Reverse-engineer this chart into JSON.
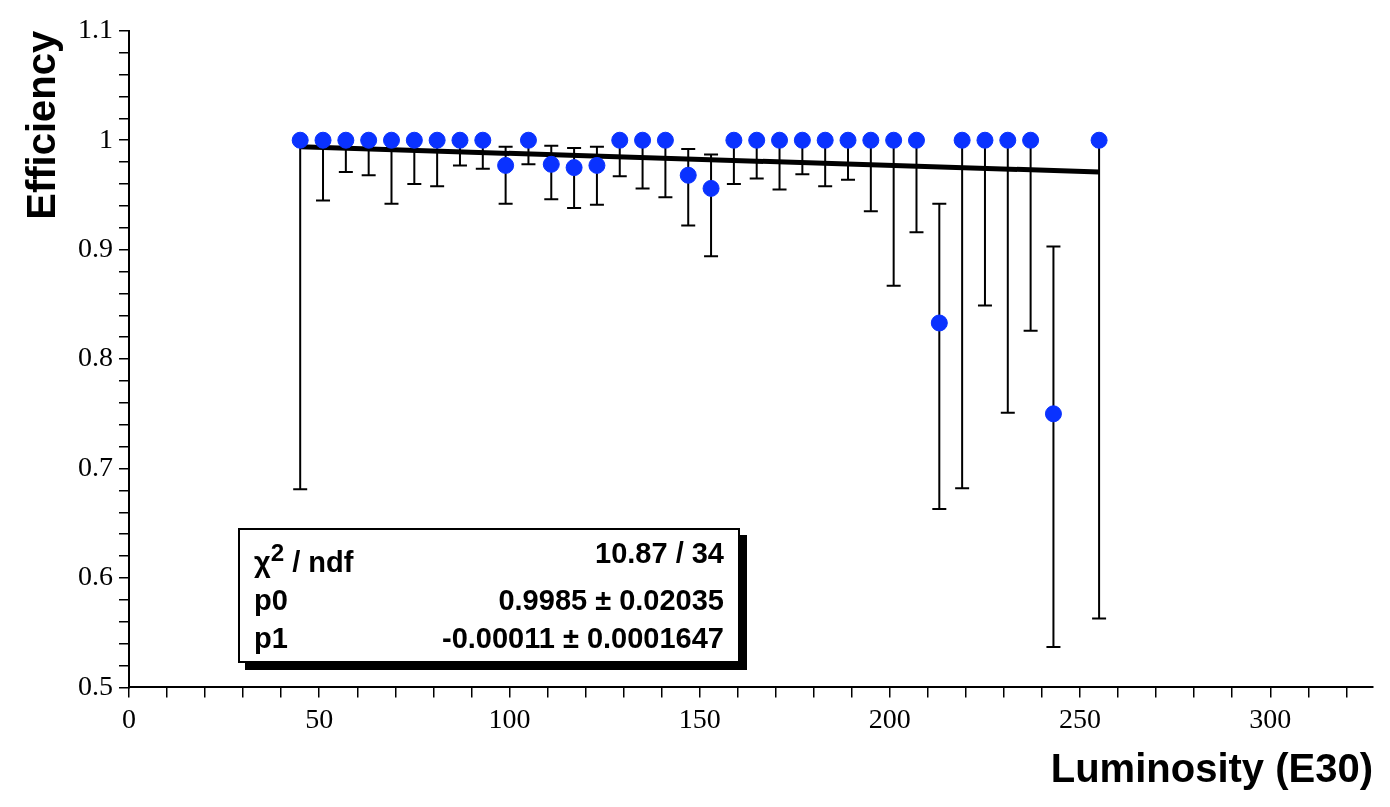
{
  "chart_data": {
    "type": "scatter",
    "xlabel": "Luminosity (E30)",
    "ylabel": "Efficiency",
    "x": [
      45,
      51,
      57,
      63,
      69,
      75,
      81,
      87,
      93,
      99,
      105,
      111,
      117,
      123,
      129,
      135,
      141,
      147,
      153,
      159,
      165,
      171,
      177,
      183,
      189,
      195,
      201,
      207,
      213,
      219,
      225,
      231,
      237,
      243,
      255
    ],
    "series": [
      {
        "type": "scatter",
        "color": "#0a32ff",
        "marker": "circle",
        "values": [
          1,
          1,
          1,
          1,
          1,
          1,
          1,
          1,
          1,
          0.977,
          1,
          0.978,
          0.975,
          0.977,
          1,
          1,
          1,
          0.968,
          0.956,
          1,
          1,
          1,
          1,
          1,
          1,
          1,
          1,
          1,
          0.833,
          1,
          1,
          1,
          1,
          0.75,
          1
        ],
        "errors": [
          [
            0.681,
            1
          ],
          [
            0.945,
            1
          ],
          [
            0.971,
            1
          ],
          [
            0.968,
            1
          ],
          [
            0.942,
            1
          ],
          [
            0.96,
            1
          ],
          [
            0.958,
            1
          ],
          [
            0.977,
            1
          ],
          [
            0.974,
            1
          ],
          [
            0.942,
            0.994
          ],
          [
            0.978,
            1
          ],
          [
            0.946,
            0.995
          ],
          [
            0.938,
            0.993
          ],
          [
            0.941,
            0.994
          ],
          [
            0.967,
            1
          ],
          [
            0.956,
            1
          ],
          [
            0.948,
            1
          ],
          [
            0.922,
            0.992
          ],
          [
            0.894,
            0.987
          ],
          [
            0.96,
            1
          ],
          [
            0.965,
            1
          ],
          [
            0.955,
            1
          ],
          [
            0.969,
            1
          ],
          [
            0.958,
            1
          ],
          [
            0.964,
            1
          ],
          [
            0.935,
            1
          ],
          [
            0.867,
            1
          ],
          [
            0.916,
            1
          ],
          [
            0.663,
            0.942
          ],
          [
            0.682,
            1
          ],
          [
            0.849,
            1
          ],
          [
            0.751,
            1
          ],
          [
            0.826,
            1
          ],
          [
            0.537,
            0.903
          ],
          [
            0.563,
            1
          ]
        ]
      },
      {
        "type": "line",
        "color": "#000000",
        "marker": "none",
        "line_style": "solid",
        "x": [
          45,
          255
        ],
        "values": [
          0.994,
          0.971
        ]
      }
    ],
    "xlim": [
      0,
      327
    ],
    "ylim": [
      0.5,
      1.1
    ],
    "xticks": [
      0,
      {
        "value": 10,
        "label": null
      },
      {
        "value": 20,
        "label": null
      },
      {
        "value": 30,
        "label": null
      },
      {
        "value": 40,
        "label": null
      },
      50,
      {
        "value": 60,
        "label": null
      },
      {
        "value": 70,
        "label": null
      },
      {
        "value": 80,
        "label": null
      },
      {
        "value": 90,
        "label": null
      },
      100,
      {
        "value": 110,
        "label": null
      },
      {
        "value": 120,
        "label": null
      },
      {
        "value": 130,
        "label": null
      },
      {
        "value": 140,
        "label": null
      },
      150,
      {
        "value": 160,
        "label": null
      },
      {
        "value": 170,
        "label": null
      },
      {
        "value": 180,
        "label": null
      },
      {
        "value": 190,
        "label": null
      },
      200,
      {
        "value": 210,
        "label": null
      },
      {
        "value": 220,
        "label": null
      },
      {
        "value": 230,
        "label": null
      },
      {
        "value": 240,
        "label": null
      },
      250,
      {
        "value": 260,
        "label": null
      },
      {
        "value": 270,
        "label": null
      },
      {
        "value": 280,
        "label": null
      },
      {
        "value": 290,
        "label": null
      },
      300,
      {
        "value": 310,
        "label": null
      },
      {
        "value": 320,
        "label": null
      }
    ],
    "yticks": [
      0.5,
      {
        "value": 0.52,
        "label": null
      },
      {
        "value": 0.54,
        "label": null
      },
      {
        "value": 0.56,
        "label": null
      },
      {
        "value": 0.58,
        "label": null
      },
      0.6,
      {
        "value": 0.62,
        "label": null
      },
      {
        "value": 0.64,
        "label": null
      },
      {
        "value": 0.66,
        "label": null
      },
      {
        "value": 0.68,
        "label": null
      },
      0.7,
      {
        "value": 0.72,
        "label": null
      },
      {
        "value": 0.74,
        "label": null
      },
      {
        "value": 0.76,
        "label": null
      },
      {
        "value": 0.78,
        "label": null
      },
      0.8,
      {
        "value": 0.82,
        "label": null
      },
      {
        "value": 0.84,
        "label": null
      },
      {
        "value": 0.86,
        "label": null
      },
      {
        "value": 0.88,
        "label": null
      },
      0.9,
      {
        "value": 0.92,
        "label": null
      },
      {
        "value": 0.94,
        "label": null
      },
      {
        "value": 0.96,
        "label": null
      },
      {
        "value": 0.98,
        "label": null
      },
      1,
      {
        "value": 1.02,
        "label": null
      },
      {
        "value": 1.04,
        "label": null
      },
      {
        "value": 1.06,
        "label": null
      },
      {
        "value": 1.08,
        "label": null
      },
      1.1
    ],
    "grid": false,
    "legend": false,
    "annotations": [
      "χ$^{2}$ / ndf",
      "10.87 / 34",
      "p0",
      "0.9985 ± 0.02035",
      "p1",
      "-0.00011 ± 0.0001647"
    ]
  }
}
